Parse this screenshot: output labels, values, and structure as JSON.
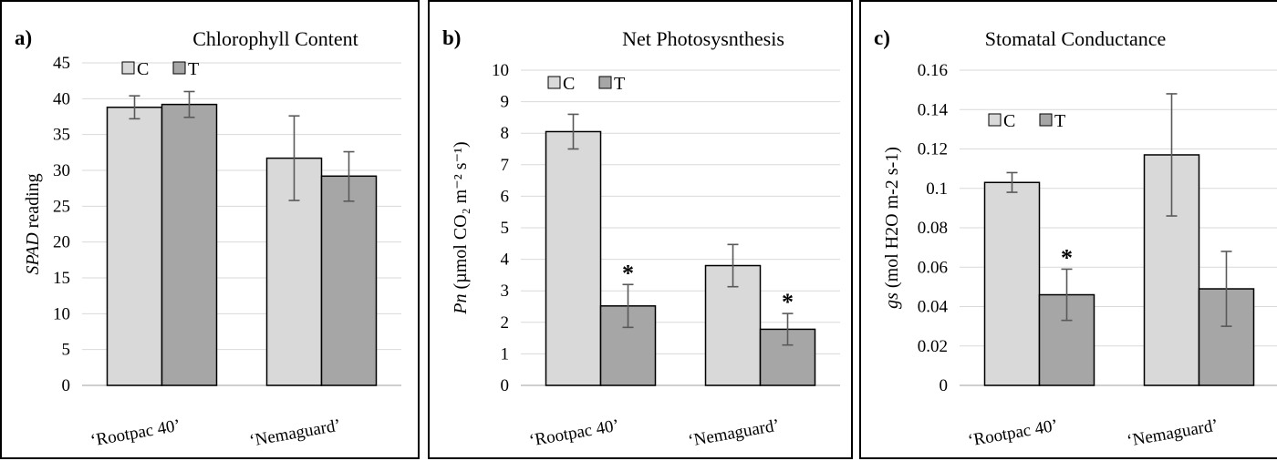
{
  "colors": {
    "C": "#d9d9d9",
    "T": "#a6a6a6",
    "grid": "#d9d9d9",
    "axis": "#bfbfbf",
    "border": "#000000",
    "errorbar": "#595959"
  },
  "chart_data": [
    {
      "type": "bar",
      "panel_label": "a)",
      "title": "Chlorophyll Content",
      "ylabel_prefix": "SPAD",
      "ylabel_suffix": " reading",
      "categories": [
        "‘Rootpac 40’",
        "‘Nemaguard’"
      ],
      "series": [
        {
          "name": "C",
          "values": [
            38.8,
            31.7
          ],
          "err_low": [
            37.2,
            25.8
          ],
          "err_high": [
            40.4,
            37.6
          ],
          "star": [
            false,
            false
          ]
        },
        {
          "name": "T",
          "values": [
            39.2,
            29.2
          ],
          "err_low": [
            37.4,
            25.7
          ],
          "err_high": [
            41.0,
            32.6
          ],
          "star": [
            false,
            false
          ]
        }
      ],
      "ylim": [
        0,
        45
      ],
      "yticks": [
        "0",
        "5",
        "10",
        "15",
        "20",
        "25",
        "30",
        "35",
        "40",
        "45"
      ],
      "grid": true,
      "legend": "top-left"
    },
    {
      "type": "bar",
      "panel_label": "b)",
      "title": "Net Photosysnthesis",
      "ylabel_prefix": "Pn",
      "ylabel_suffix": " (µmol CO₂ m⁻² s⁻¹)",
      "categories": [
        "‘Rootpac 40’",
        "‘Nemaguard’"
      ],
      "series": [
        {
          "name": "C",
          "values": [
            8.05,
            3.8
          ],
          "err_low": [
            7.5,
            3.13
          ],
          "err_high": [
            8.6,
            4.47
          ],
          "star": [
            false,
            false
          ]
        },
        {
          "name": "T",
          "values": [
            2.52,
            1.78
          ],
          "err_low": [
            1.84,
            1.28
          ],
          "err_high": [
            3.2,
            2.28
          ],
          "star": [
            true,
            true
          ]
        }
      ],
      "ylim": [
        0,
        10
      ],
      "yticks": [
        "0",
        "1",
        "2",
        "3",
        "4",
        "5",
        "6",
        "7",
        "8",
        "9",
        "10"
      ],
      "grid": true,
      "legend": "top-left",
      "annotation": "*"
    },
    {
      "type": "bar",
      "panel_label": "c)",
      "title": "Stomatal Conductance",
      "ylabel_prefix": "gs",
      "ylabel_suffix": " (mol H2O m-2 s-1)",
      "categories": [
        "‘Rootpac 40’",
        "‘Nemaguard’"
      ],
      "series": [
        {
          "name": "C",
          "values": [
            0.103,
            0.117
          ],
          "err_low": [
            0.098,
            0.086
          ],
          "err_high": [
            0.108,
            0.148
          ],
          "star": [
            false,
            false
          ]
        },
        {
          "name": "T",
          "values": [
            0.046,
            0.049
          ],
          "err_low": [
            0.033,
            0.03
          ],
          "err_high": [
            0.059,
            0.068
          ],
          "star": [
            true,
            false
          ]
        }
      ],
      "ylim": [
        0,
        0.16
      ],
      "yticks": [
        "0",
        "0.02",
        "0.04",
        "0.06",
        "0.08",
        "0.1",
        "0.12",
        "0.14",
        "0.16"
      ],
      "grid": true,
      "legend": "top-left",
      "annotation": "*"
    }
  ]
}
